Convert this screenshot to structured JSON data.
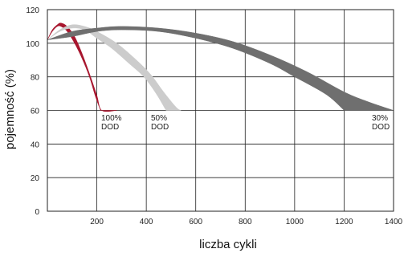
{
  "chart_data": {
    "type": "area",
    "title": "",
    "xlabel": "liczba cykli",
    "ylabel": "pojemność (%)",
    "xlim": [
      0,
      1400
    ],
    "ylim": [
      0,
      120
    ],
    "xticks": [
      200,
      400,
      600,
      800,
      1000,
      1200,
      1400
    ],
    "yticks": [
      0,
      20,
      40,
      60,
      80,
      100,
      120
    ],
    "grid": true,
    "series": [
      {
        "name": "100% DOD",
        "color": "#a8162e",
        "upper": [
          [
            0,
            102
          ],
          [
            20,
            108
          ],
          [
            40,
            111
          ],
          [
            55,
            112
          ],
          [
            80,
            110
          ],
          [
            110,
            104
          ],
          [
            140,
            94
          ],
          [
            170,
            82
          ],
          [
            200,
            69
          ],
          [
            220,
            60
          ],
          [
            280,
            60
          ]
        ],
        "lower": [
          [
            0,
            102
          ],
          [
            20,
            107
          ],
          [
            40,
            110
          ],
          [
            55,
            110
          ],
          [
            80,
            107
          ],
          [
            110,
            100
          ],
          [
            140,
            91
          ],
          [
            170,
            80
          ],
          [
            195,
            68
          ],
          [
            215,
            60
          ]
        ]
      },
      {
        "name": "50% DOD",
        "color": "#cccccc",
        "upper": [
          [
            0,
            102
          ],
          [
            50,
            108
          ],
          [
            100,
            111
          ],
          [
            150,
            110
          ],
          [
            200,
            107
          ],
          [
            280,
            100
          ],
          [
            360,
            90
          ],
          [
            420,
            81
          ],
          [
            470,
            71
          ],
          [
            520,
            62
          ],
          [
            540,
            60
          ]
        ],
        "lower": [
          [
            0,
            102
          ],
          [
            50,
            107
          ],
          [
            100,
            109
          ],
          [
            150,
            108
          ],
          [
            200,
            103
          ],
          [
            260,
            97
          ],
          [
            330,
            88
          ],
          [
            390,
            80
          ],
          [
            440,
            70
          ],
          [
            480,
            60
          ]
        ]
      },
      {
        "name": "30% DOD",
        "color": "#6f6f6f",
        "upper": [
          [
            0,
            102
          ],
          [
            100,
            107
          ],
          [
            200,
            109
          ],
          [
            300,
            110
          ],
          [
            450,
            109
          ],
          [
            600,
            106
          ],
          [
            750,
            101
          ],
          [
            900,
            93
          ],
          [
            1050,
            83
          ],
          [
            1200,
            71
          ],
          [
            1300,
            65
          ],
          [
            1400,
            60
          ]
        ],
        "lower": [
          [
            0,
            102
          ],
          [
            100,
            104
          ],
          [
            200,
            107
          ],
          [
            300,
            108
          ],
          [
            450,
            107
          ],
          [
            600,
            103
          ],
          [
            750,
            97
          ],
          [
            900,
            88
          ],
          [
            1000,
            80
          ],
          [
            1100,
            72
          ],
          [
            1150,
            67
          ],
          [
            1200,
            60
          ]
        ]
      }
    ],
    "annotations": [
      {
        "line1": "100%",
        "line2": "DOD",
        "series": "100% DOD"
      },
      {
        "line1": "50%",
        "line2": "DOD",
        "series": "50% DOD"
      },
      {
        "line1": "30%",
        "line2": "DOD",
        "series": "30% DOD"
      }
    ]
  }
}
